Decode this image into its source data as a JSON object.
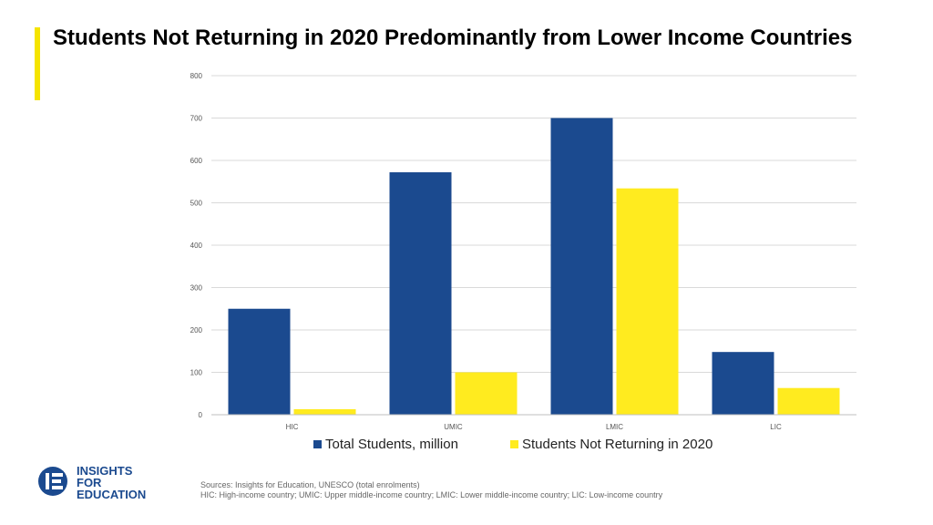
{
  "header": {
    "title": "Students Not Returning in 2020 Predominantly from Lower Income Countries"
  },
  "colors": {
    "accent": "#f5e400",
    "series_blue": "#1b4a8f",
    "series_yellow": "#ffeb1f",
    "grid": "#d9d9d9"
  },
  "chart_data": {
    "type": "bar",
    "title": "",
    "xlabel": "",
    "ylabel": "",
    "categories": [
      "HIC",
      "UMIC",
      "LMIC",
      "LIC"
    ],
    "series": [
      {
        "name": "Total Students, million",
        "values": [
          250,
          572,
          700,
          148
        ],
        "color": "#1b4a8f"
      },
      {
        "name": "Students Not Returning in 2020",
        "values": [
          13,
          100,
          534,
          63
        ],
        "color": "#ffeb1f"
      }
    ],
    "ylim": [
      0,
      800
    ],
    "yticks": [
      0,
      100,
      200,
      300,
      400,
      500,
      600,
      700,
      800
    ],
    "grid": true,
    "legend": "bottom"
  },
  "logo": {
    "line1": "INSIGHTS",
    "line2": "FOR",
    "line3": "EDUCATION"
  },
  "footer": {
    "sources": "Sources: Insights for Education, UNESCO (total enrolments)",
    "note": "HIC: High-income country; UMIC: Upper middle-income country; LMIC: Lower middle-income country; LIC: Low-income country"
  }
}
